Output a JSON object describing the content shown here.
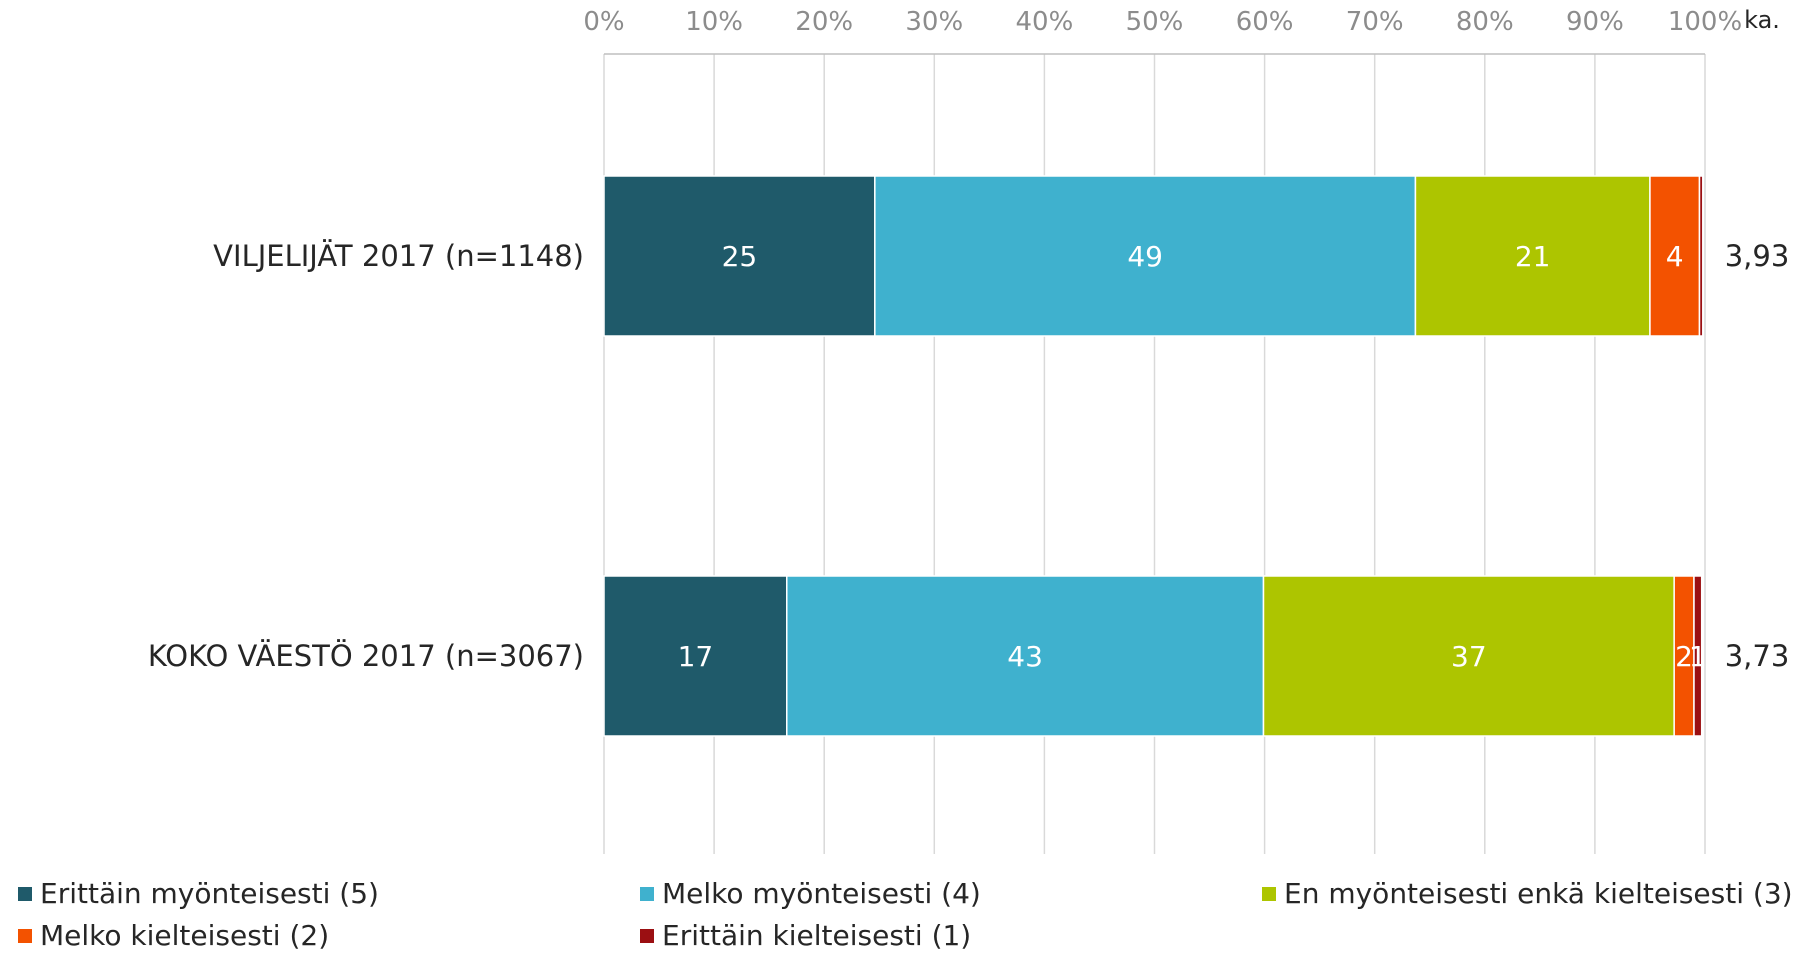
{
  "chart_data": {
    "type": "bar",
    "orientation": "horizontal",
    "stacked": true,
    "percent_stacked": true,
    "categories": [
      "VILJELIJÄT 2017 (n=1148)",
      "KOKO VÄESTÖ 2017 (n=3067)"
    ],
    "series": [
      {
        "name": "Erittäin myönteisesti (5)",
        "color": "#1f5a6a",
        "values": [
          24.6,
          16.6
        ],
        "labels": [
          "25",
          "17"
        ]
      },
      {
        "name": "Melko myönteisesti (4)",
        "color": "#3fb1ce",
        "values": [
          49.1,
          43.3
        ],
        "labels": [
          "49",
          "43"
        ]
      },
      {
        "name": "En myönteisesti enkä kielteisesti (3)",
        "color": "#adc500",
        "values": [
          21.3,
          37.3
        ],
        "labels": [
          "21",
          "37"
        ]
      },
      {
        "name": "Melko kielteisesti (2)",
        "color": "#f35200",
        "values": [
          4.5,
          1.8
        ],
        "labels": [
          "4",
          "2"
        ]
      },
      {
        "name": "Erittäin kielteisesti (1)",
        "color": "#9b0f12",
        "values": [
          0.3,
          0.7
        ],
        "labels": [
          "",
          "1"
        ]
      }
    ],
    "x_ticks": [
      "0%",
      "10%",
      "20%",
      "30%",
      "40%",
      "50%",
      "60%",
      "70%",
      "80%",
      "90%",
      "100%"
    ],
    "xlim": [
      0,
      100
    ],
    "axis_position": "top",
    "grid": true,
    "legend_position": "bottom",
    "mean_header": "ka.",
    "means": [
      "3,93",
      "3,73"
    ]
  }
}
